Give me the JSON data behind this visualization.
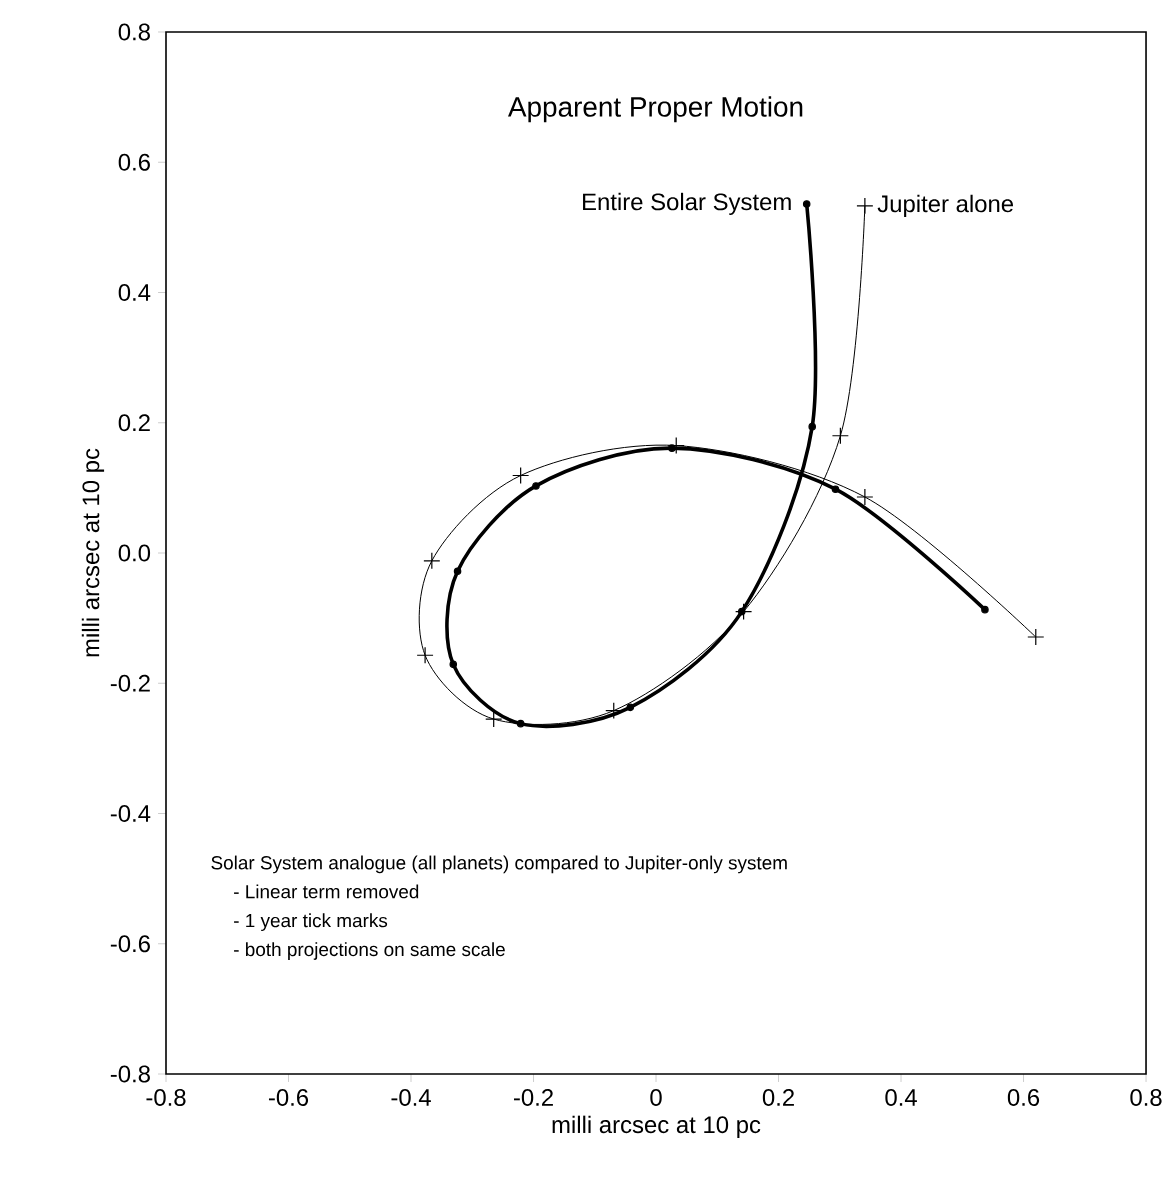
{
  "chart_data": {
    "type": "line",
    "title": "Apparent Proper Motion",
    "xlabel": "milli arcsec at 10 pc",
    "ylabel": "milli arcsec at 10 pc",
    "xlim": [
      -0.8,
      0.8
    ],
    "ylim": [
      -0.8,
      0.8
    ],
    "xticks": [
      -0.8,
      -0.6,
      -0.4,
      -0.2,
      0,
      0.2,
      0.4,
      0.6,
      0.8
    ],
    "yticks": [
      -0.8,
      -0.6,
      -0.4,
      -0.2,
      {
        "value": 0,
        "label": "0.0"
      },
      0.2,
      0.4,
      0.6,
      0.8
    ],
    "grid": false,
    "line_style": "solid",
    "series": [
      {
        "name": "Entire Solar System",
        "color": "#000000",
        "marker": "circle",
        "x": [
          0.246,
          0.255,
          0.14,
          -0.042,
          -0.221,
          -0.331,
          -0.324,
          -0.196,
          0.026,
          0.293,
          0.537
        ],
        "values": [
          0.536,
          0.194,
          -0.09,
          -0.237,
          -0.262,
          -0.171,
          -0.028,
          0.103,
          0.161,
          0.098,
          -0.087
        ]
      },
      {
        "name": "Jupiter alone",
        "color": "#000000",
        "marker": "cross",
        "x": [
          0.341,
          0.301,
          0.143,
          -0.069,
          -0.265,
          -0.377,
          -0.366,
          -0.221,
          0.033,
          0.341,
          0.62
        ],
        "values": [
          0.533,
          0.18,
          -0.09,
          -0.242,
          -0.255,
          -0.157,
          -0.012,
          0.119,
          0.165,
          0.086,
          -0.129
        ]
      }
    ],
    "annotations": [
      "Solar  System analogue (all planets) compared to Jupiter-only system",
      "-  Linear term removed",
      "-  1 year tick marks",
      "-  both projections on same scale"
    ]
  }
}
